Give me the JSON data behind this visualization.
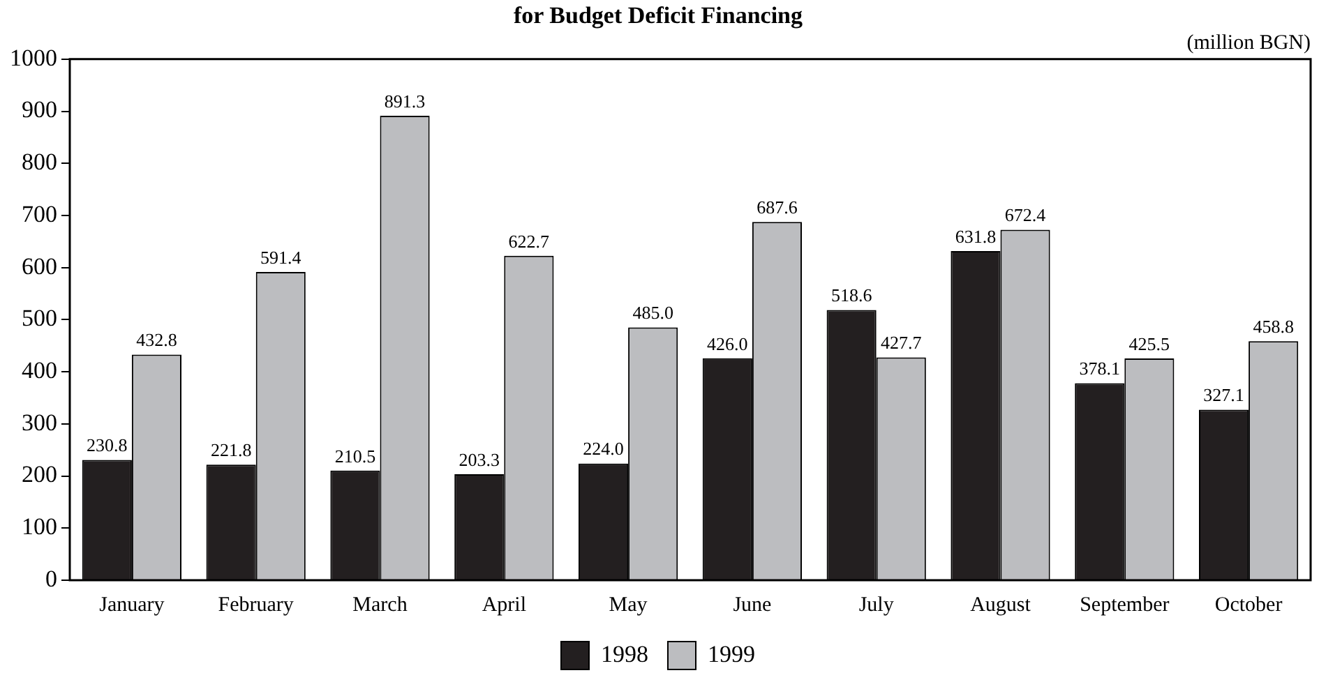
{
  "chart_data": {
    "type": "bar",
    "title": "for Budget Deficit Financing",
    "annotations": [
      "(million BGN)"
    ],
    "categories": [
      "January",
      "February",
      "March",
      "April",
      "May",
      "June",
      "July",
      "August",
      "September",
      "October"
    ],
    "series": [
      {
        "name": "1998",
        "color": "#231f20",
        "values": [
          230.8,
          221.8,
          210.5,
          203.3,
          224,
          426,
          518.6,
          631.8,
          378.1,
          327.1
        ],
        "value_labels": [
          "230.8",
          "221.8",
          "210.5",
          "203.3",
          "224.0",
          "426.0",
          "518.6",
          "631.8",
          "378.1",
          "327.1"
        ]
      },
      {
        "name": "1999",
        "color": "#bcbdc0",
        "values": [
          432.8,
          591.4,
          891.3,
          622.7,
          485,
          687.6,
          427.7,
          672.4,
          425.5,
          458.8
        ],
        "value_labels": [
          "432.8",
          "591.4",
          "891.3",
          "622.7",
          "485.0",
          "687.6",
          "427.7",
          "672.4",
          "425.5",
          "458.8"
        ]
      }
    ],
    "ylim": [
      0,
      1000
    ],
    "yticks": [
      0,
      100,
      200,
      300,
      400,
      500,
      600,
      700,
      800,
      900,
      1000
    ],
    "grid": false,
    "legend": "bottom"
  }
}
